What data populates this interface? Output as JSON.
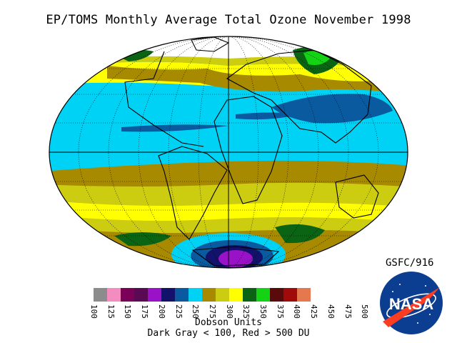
{
  "title": "EP/TOMS Monthly Average Total Ozone November 1998",
  "credit": "GSFC/916",
  "legend": {
    "units_label": "Dobson Units",
    "range_note": "Dark Gray < 100, Red > 500 DU",
    "bins": [
      {
        "label": "100",
        "color": "#8c8c8c"
      },
      {
        "label": "125",
        "color": "#f58cc0"
      },
      {
        "label": "150",
        "color": "#7a0058"
      },
      {
        "label": "175",
        "color": "#5a0a55"
      },
      {
        "label": "200",
        "color": "#9a12c8"
      },
      {
        "label": "225",
        "color": "#12126a"
      },
      {
        "label": "250",
        "color": "#0a5aa0"
      },
      {
        "label": "275",
        "color": "#00d2f5"
      },
      {
        "label": "300",
        "color": "#a88a00"
      },
      {
        "label": "325",
        "color": "#cccc10"
      },
      {
        "label": "350",
        "color": "#ffff00"
      },
      {
        "label": "375",
        "color": "#0a6414"
      },
      {
        "label": "400",
        "color": "#14d214"
      },
      {
        "label": "425",
        "color": "#5a0a0a"
      },
      {
        "label": "450",
        "color": "#a00a0a"
      },
      {
        "label": "475",
        "color": "#e67850"
      },
      {
        "label": "500",
        "color": "#b4141e"
      }
    ]
  },
  "logo": {
    "text": "NASA",
    "icon": "nasa-meatball-logo"
  }
}
